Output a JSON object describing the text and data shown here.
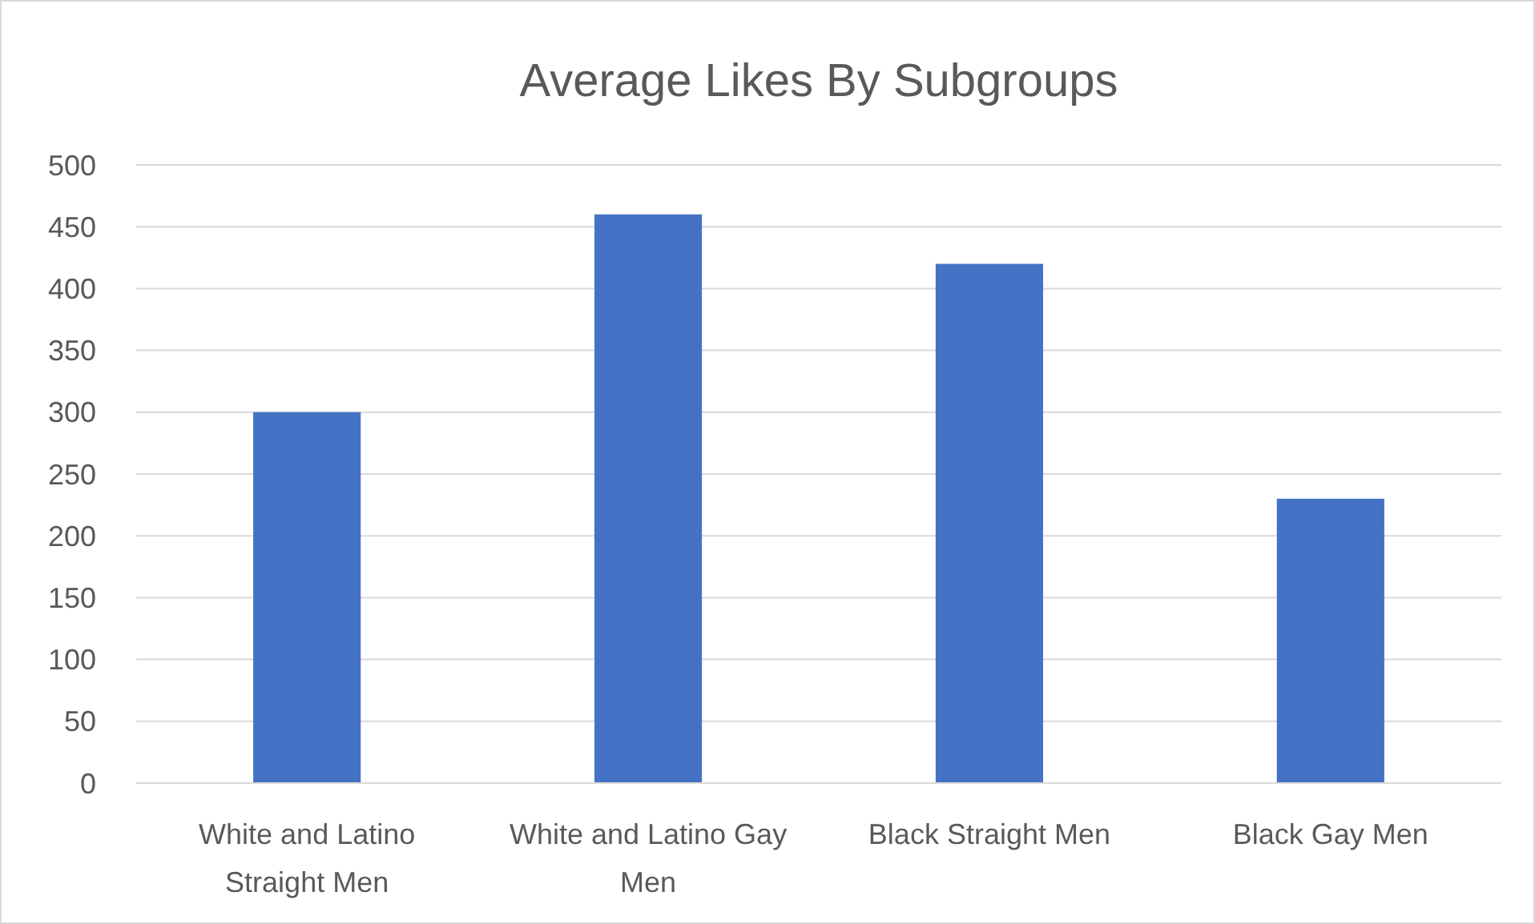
{
  "chart_data": {
    "type": "bar",
    "title": "Average Likes By Subgroups",
    "categories": [
      "White and Latino Straight Men",
      "White and Latino Gay Men",
      "Black Straight Men",
      "Black Gay Men"
    ],
    "values": [
      300,
      460,
      420,
      230
    ],
    "color": "#4472c4",
    "ylim": [
      0,
      500
    ],
    "yticks": [
      0,
      50,
      100,
      150,
      200,
      250,
      300,
      350,
      400,
      450,
      500
    ],
    "grid": "y"
  }
}
